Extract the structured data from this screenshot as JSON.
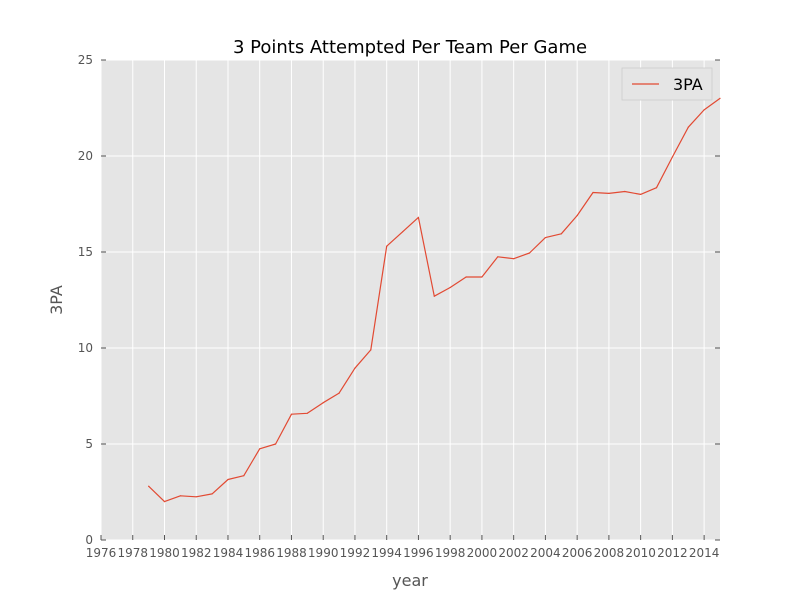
{
  "chart_data": {
    "type": "line",
    "title": "3 Points Attempted Per Team Per Game",
    "xlabel": "year",
    "ylabel": "3PA",
    "xlim": [
      1976,
      2015
    ],
    "ylim": [
      0,
      25
    ],
    "xticks": [
      "1976",
      "1978",
      "1980",
      "1982",
      "1984",
      "1986",
      "1988",
      "1990",
      "1992",
      "1994",
      "1996",
      "1998",
      "2000",
      "2002",
      "2004",
      "2006",
      "2008",
      "2010",
      "2012",
      "2014"
    ],
    "yticks": [
      "0",
      "5",
      "10",
      "15",
      "20",
      "25"
    ],
    "grid": true,
    "legend_position": "top-right",
    "series": [
      {
        "name": "3PA",
        "color": "#e24a33",
        "x": [
          1979,
          1980,
          1981,
          1982,
          1983,
          1984,
          1985,
          1986,
          1987,
          1988,
          1989,
          1990,
          1991,
          1992,
          1993,
          1994,
          1995,
          1996,
          1997,
          1998,
          1999,
          2000,
          2001,
          2002,
          2003,
          2004,
          2005,
          2006,
          2007,
          2008,
          2009,
          2010,
          2011,
          2012,
          2013,
          2014,
          2015
        ],
        "y": [
          2.8,
          2.0,
          2.3,
          2.25,
          2.4,
          3.15,
          3.35,
          4.75,
          5.0,
          6.55,
          6.6,
          7.15,
          7.65,
          8.95,
          9.9,
          15.3,
          16.05,
          16.8,
          12.7,
          13.15,
          13.7,
          13.7,
          14.75,
          14.65,
          14.95,
          15.75,
          15.95,
          16.9,
          18.1,
          18.05,
          18.15,
          18.0,
          18.35,
          19.95,
          21.5,
          22.4,
          23.0
        ]
      }
    ]
  },
  "colors": {
    "plot_background": "#e5e5e5",
    "grid": "#ffffff",
    "axis_text": "#555555"
  }
}
